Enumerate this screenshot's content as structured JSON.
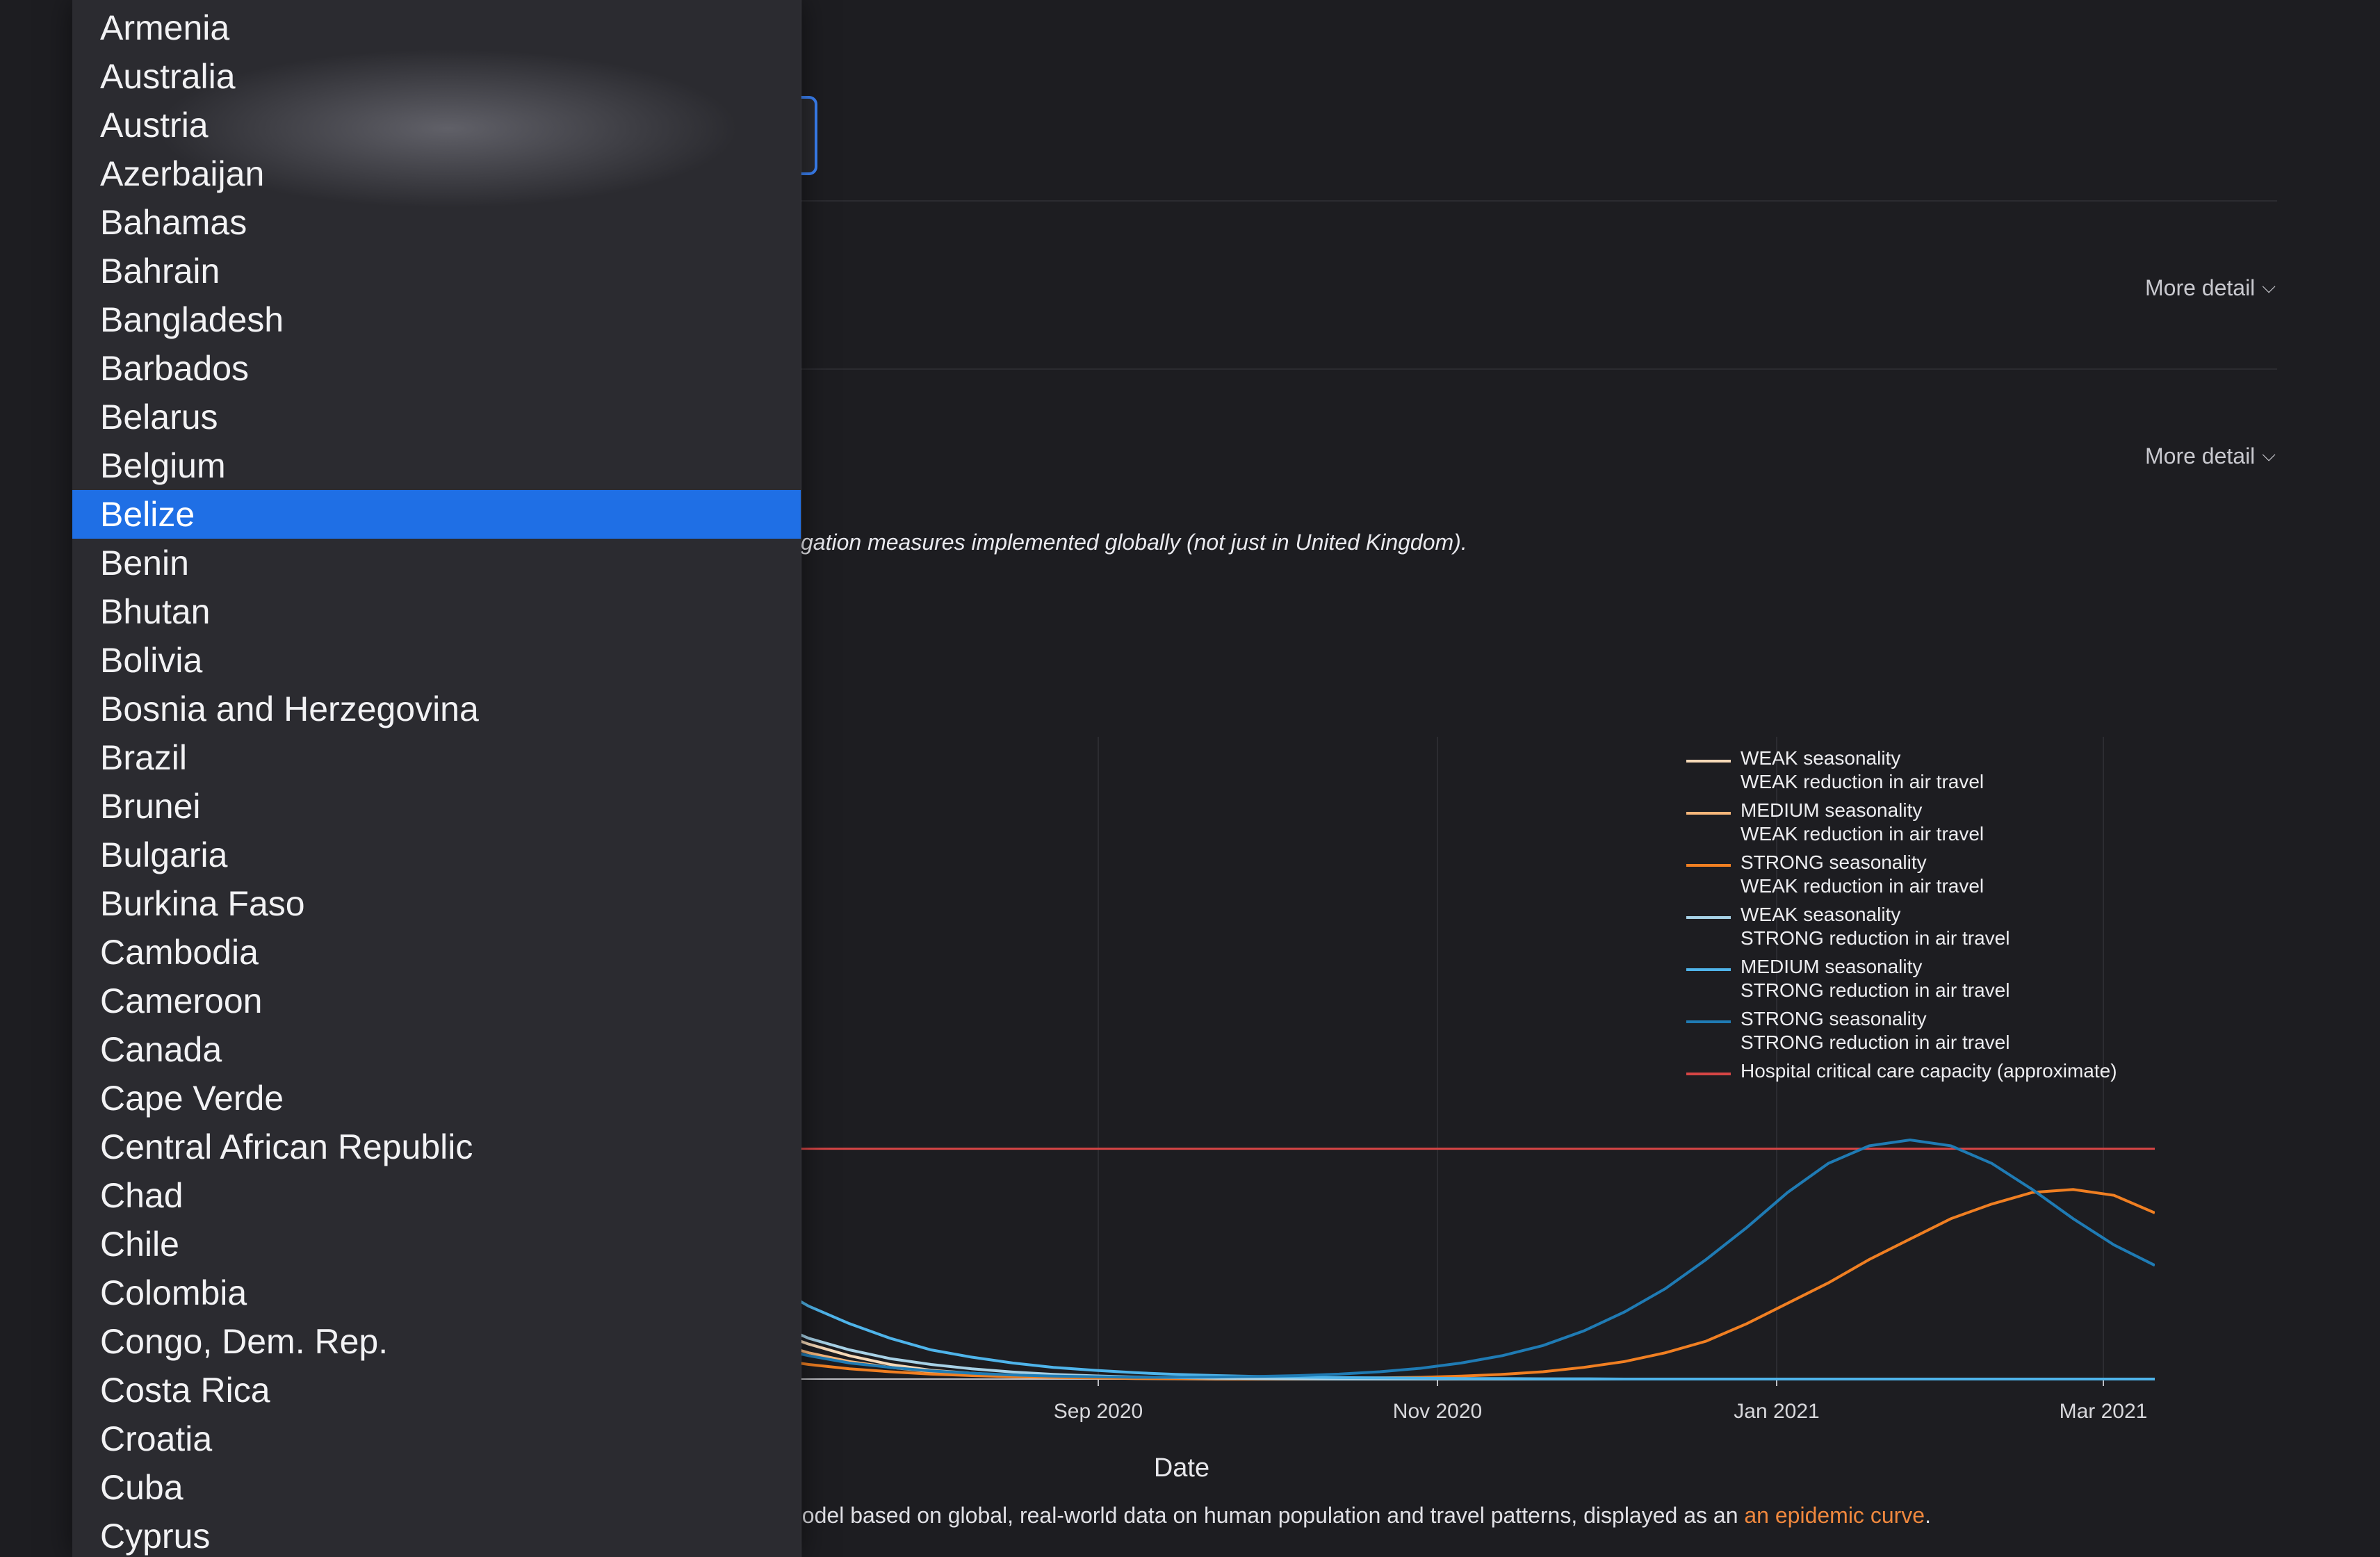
{
  "dropdown": {
    "selected": "Belize",
    "options": [
      "Armenia",
      "Australia",
      "Austria",
      "Azerbaijan",
      "Bahamas",
      "Bahrain",
      "Bangladesh",
      "Barbados",
      "Belarus",
      "Belgium",
      "Belize",
      "Benin",
      "Bhutan",
      "Bolivia",
      "Bosnia and Herzegovina",
      "Brazil",
      "Brunei",
      "Bulgaria",
      "Burkina Faso",
      "Cambodia",
      "Cameroon",
      "Canada",
      "Cape Verde",
      "Central African Republic",
      "Chad",
      "Chile",
      "Colombia",
      "Congo, Dem. Rep.",
      "Costa Rica",
      "Croatia",
      "Cuba",
      "Cyprus"
    ]
  },
  "sections": {
    "more_detail_1": "More detail",
    "more_detail_2": "More detail",
    "note": "gation measures implemented globally (not just in United Kingdom).",
    "caption_prefix": "nodel based on global, real-world data on human population and travel patterns, displayed as an ",
    "caption_link": "an epidemic curve",
    "caption_suffix": "."
  },
  "chart_data": {
    "type": "line",
    "xlabel": "Date",
    "x_ticks": [
      "Sep 2020",
      "Nov 2020",
      "Jan 2021",
      "Mar 2021"
    ],
    "legend_position": "top-right",
    "grid": true,
    "x_days": [
      0,
      8,
      16,
      24,
      32,
      40,
      48,
      56,
      64,
      72,
      80,
      88,
      96,
      104,
      112,
      120,
      128,
      136,
      144,
      152,
      160,
      168,
      176,
      184,
      192,
      200,
      208,
      216,
      224,
      232,
      240,
      248,
      256,
      264,
      272,
      280
    ],
    "x_start": "2020-07-28",
    "capacity_level": 0.79,
    "series": [
      {
        "name": "WEAK seasonality\nWEAK reduction in air travel",
        "label_lines": [
          "WEAK seasonality",
          "WEAK reduction in air travel"
        ],
        "color": "#f6d9b8",
        "values": [
          0.24,
          0.17,
          0.12,
          0.08,
          0.05,
          0.03,
          0.02,
          0.012,
          0.008,
          0.005,
          0.003,
          0.002,
          0.001,
          0,
          0,
          0,
          0,
          0,
          0,
          0,
          0,
          0,
          0,
          0,
          0,
          0,
          0,
          0,
          0,
          0,
          0,
          0,
          0,
          0,
          0,
          0
        ]
      },
      {
        "name": "MEDIUM seasonality\nWEAK reduction in air travel",
        "label_lines": [
          "MEDIUM seasonality",
          "WEAK reduction in air travel"
        ],
        "color": "#f7b67a",
        "values": [
          0.19,
          0.13,
          0.09,
          0.06,
          0.04,
          0.025,
          0.015,
          0.01,
          0.006,
          0.004,
          0.002,
          0.001,
          0,
          0,
          0,
          0,
          0,
          0,
          0,
          0,
          0,
          0,
          0,
          0,
          0,
          0,
          0,
          0,
          0,
          0,
          0,
          0,
          0,
          0,
          0,
          0
        ]
      },
      {
        "name": "STRONG seasonality\nWEAK reduction in air travel",
        "label_lines": [
          "STRONG seasonality",
          "WEAK reduction in air travel"
        ],
        "color": "#f07f22",
        "values": [
          0.1,
          0.07,
          0.05,
          0.035,
          0.025,
          0.017,
          0.012,
          0.008,
          0.006,
          0.004,
          0.003,
          0.002,
          0.002,
          0.002,
          0.002,
          0.003,
          0.004,
          0.006,
          0.01,
          0.016,
          0.025,
          0.04,
          0.06,
          0.09,
          0.13,
          0.19,
          0.26,
          0.33,
          0.41,
          0.48,
          0.55,
          0.6,
          0.64,
          0.65,
          0.63,
          0.57
        ]
      },
      {
        "name": "WEAK seasonality\nSTRONG reduction in air travel",
        "label_lines": [
          "WEAK seasonality",
          "STRONG reduction in air travel"
        ],
        "color": "#a7d1e6",
        "values": [
          0.28,
          0.2,
          0.14,
          0.1,
          0.07,
          0.05,
          0.035,
          0.024,
          0.016,
          0.011,
          0.007,
          0.005,
          0.003,
          0.002,
          0.001,
          0,
          0,
          0,
          0,
          0,
          0,
          0,
          0,
          0,
          0,
          0,
          0,
          0,
          0,
          0,
          0,
          0,
          0,
          0,
          0,
          0
        ]
      },
      {
        "name": "MEDIUM seasonality\nSTRONG reduction in air travel",
        "label_lines": [
          "MEDIUM seasonality",
          "STRONG reduction in air travel"
        ],
        "color": "#4fb4ea",
        "values": [
          0.42,
          0.33,
          0.25,
          0.19,
          0.14,
          0.1,
          0.075,
          0.055,
          0.04,
          0.03,
          0.022,
          0.016,
          0.012,
          0.009,
          0.007,
          0.005,
          0.004,
          0.003,
          0.002,
          0.002,
          0.001,
          0.001,
          0,
          0,
          0,
          0,
          0,
          0,
          0,
          0,
          0,
          0,
          0,
          0,
          0,
          0
        ]
      },
      {
        "name": "STRONG seasonality\nSTRONG reduction in air travel",
        "label_lines": [
          "STRONG seasonality",
          "STRONG reduction in air travel"
        ],
        "color": "#1f7bb4",
        "values": [
          0.16,
          0.11,
          0.08,
          0.055,
          0.04,
          0.028,
          0.02,
          0.014,
          0.01,
          0.008,
          0.006,
          0.006,
          0.007,
          0.009,
          0.012,
          0.017,
          0.025,
          0.037,
          0.055,
          0.08,
          0.115,
          0.165,
          0.23,
          0.31,
          0.41,
          0.52,
          0.64,
          0.74,
          0.8,
          0.82,
          0.8,
          0.74,
          0.65,
          0.55,
          0.46,
          0.39
        ]
      },
      {
        "name": "Hospital critical care capacity (approximate)",
        "label_lines": [
          "Hospital critical care capacity (approximate)"
        ],
        "color": "#d64545",
        "values": []
      }
    ]
  }
}
